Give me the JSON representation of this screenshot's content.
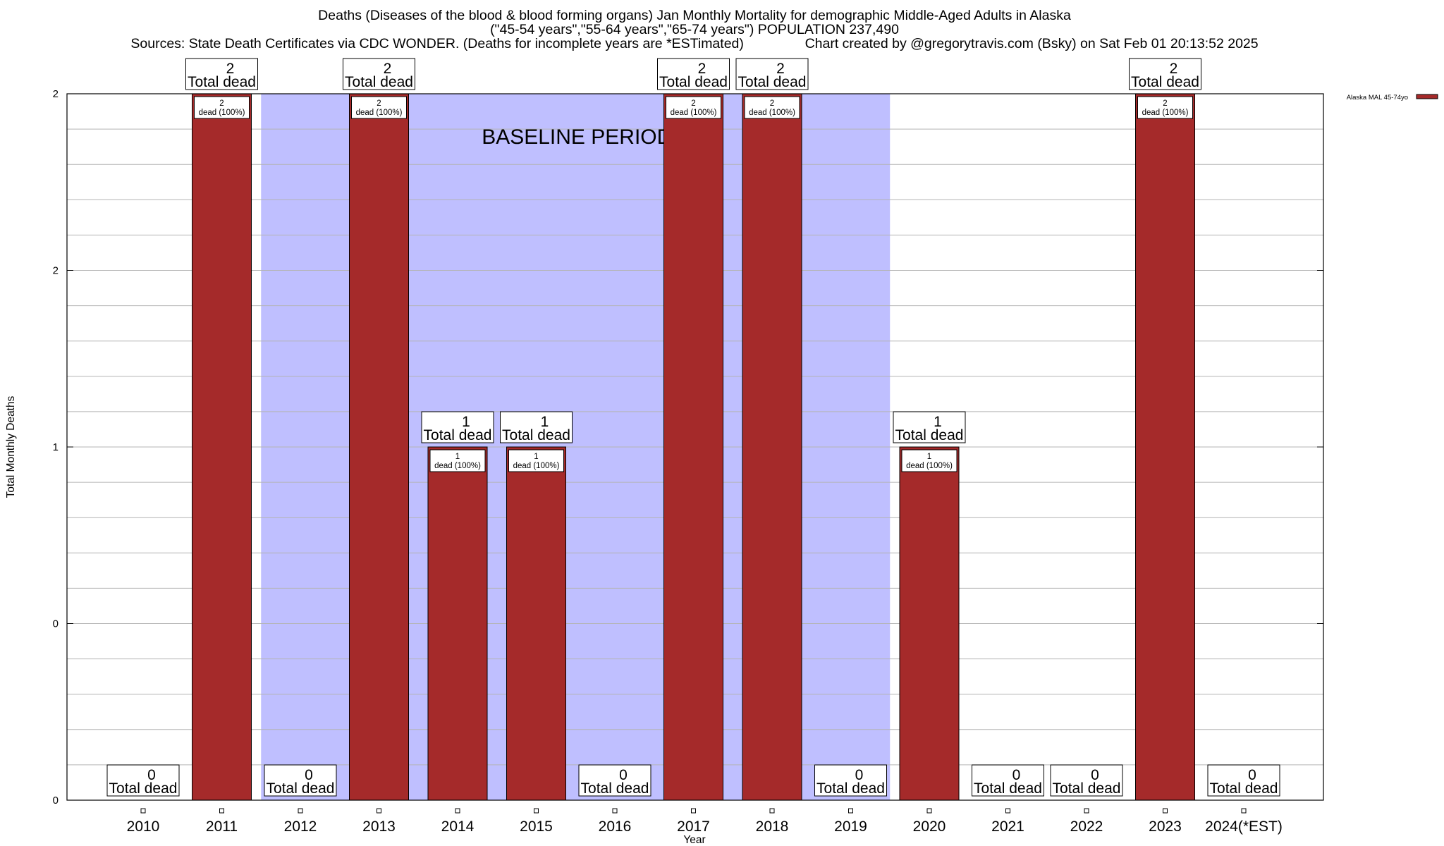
{
  "titles": {
    "line1": "Deaths (Diseases of the blood & blood forming organs) Jan Monthly Mortality for demographic Middle-Aged Adults in Alaska",
    "line2": "(\"45-54 years\",\"55-64 years\",\"65-74 years\") POPULATION 237,490",
    "line3": "Sources: State Death Certificates via CDC WONDER. (Deaths for incomplete years are *ESTimated)                Chart created by @gregorytravis.com (Bsky) on Sat Feb 01 20:13:52 2025"
  },
  "chart_data": {
    "type": "bar",
    "xlabel": "Year",
    "ylabel": "Total Monthly Deaths",
    "categories": [
      "2010",
      "2011",
      "2012",
      "2013",
      "2014",
      "2015",
      "2016",
      "2017",
      "2018",
      "2019",
      "2020",
      "2021",
      "2022",
      "2023",
      "2024(*EST)"
    ],
    "series": [
      {
        "name": "Alaska MAL 45-74yo",
        "color": "#a52a2a",
        "values": [
          0,
          2,
          0,
          2,
          1,
          1,
          0,
          2,
          2,
          0,
          1,
          0,
          0,
          2,
          0
        ]
      }
    ],
    "ylim": [
      0,
      2
    ],
    "ytick_labels": [
      "0",
      "0",
      "1",
      "2",
      "2"
    ],
    "total_label": "Total dead",
    "inner_label": "dead (100%)",
    "baseline": {
      "label": "BASELINE PERIOD",
      "from": "2012",
      "to": "2019",
      "color": "#bfbfff"
    },
    "grid": true,
    "legend_position": "top-right"
  }
}
